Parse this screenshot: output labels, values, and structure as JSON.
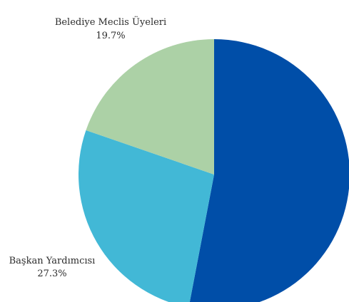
{
  "chart_data": {
    "type": "pie",
    "title": "",
    "slices": [
      {
        "label": "",
        "percent_label": "",
        "value": 53.0,
        "color": "#004ea8"
      },
      {
        "label": "Başkan Yardımcısı",
        "percent_label": "27.3%",
        "value": 27.3,
        "color": "#42b8d6"
      },
      {
        "label": "Belediye Meclis Üyeleri",
        "percent_label": "19.7%",
        "value": 19.7,
        "color": "#acd1a6"
      }
    ],
    "start": "12 o'clock",
    "direction": "clockwise",
    "legend": "none"
  }
}
